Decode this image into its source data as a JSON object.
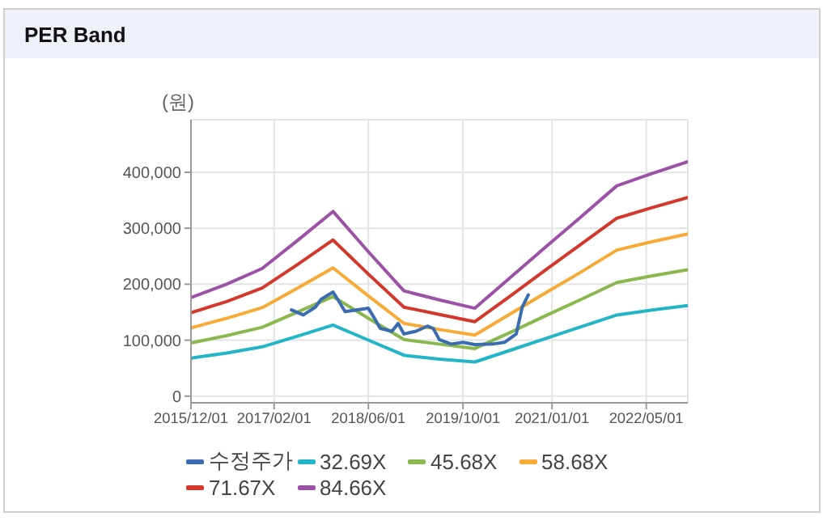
{
  "chart_data": {
    "type": "line",
    "title": "PER Band",
    "ylabel": "(원)",
    "x": [
      "2015-12-01",
      "2016-06-01",
      "2016-12-01",
      "2017-06-01",
      "2017-12-01",
      "2018-06-01",
      "2018-12-01",
      "2019-06-01",
      "2019-12-01",
      "2020-06-01",
      "2020-12-01",
      "2021-06-01",
      "2021-12-01",
      "2022-06-01",
      "2022-12-01"
    ],
    "series": [
      {
        "name": "수정주가",
        "color": "#3b6cb0",
        "x": [
          "2017-05",
          "2017-07",
          "2017-09",
          "2017-10",
          "2017-12",
          "2018-01",
          "2018-02",
          "2018-04",
          "2018-06",
          "2018-07",
          "2018-08",
          "2018-10",
          "2018-11",
          "2018-12",
          "2019-02",
          "2019-04",
          "2019-05",
          "2019-06",
          "2019-08",
          "2019-10",
          "2019-12",
          "2020-03",
          "2020-05",
          "2020-07",
          "2020-08",
          "2020-09"
        ],
        "values": [
          154000,
          145000,
          159000,
          173000,
          186000,
          169000,
          151000,
          154000,
          157000,
          140000,
          121000,
          116000,
          130000,
          111000,
          116000,
          125000,
          121000,
          101000,
          93000,
          96000,
          92000,
          93000,
          96000,
          111000,
          159000,
          181000
        ]
      },
      {
        "name": "32.69X",
        "color": "#22b5c8",
        "values": [
          68000,
          77000,
          88000,
          107000,
          127000,
          100000,
          73000,
          66000,
          61000,
          82000,
          103000,
          124000,
          145000,
          154000,
          162000
        ]
      },
      {
        "name": "45.68X",
        "color": "#8ab84e",
        "values": [
          95000,
          108000,
          123000,
          150000,
          178000,
          139000,
          101000,
          93000,
          85000,
          114000,
          144000,
          173000,
          203000,
          215000,
          226000
        ]
      },
      {
        "name": "58.68X",
        "color": "#f7aa35",
        "values": [
          122000,
          139000,
          158000,
          193000,
          229000,
          179000,
          130000,
          119000,
          109000,
          147000,
          185000,
          222000,
          261000,
          276000,
          290000
        ]
      },
      {
        "name": "71.67X",
        "color": "#d2392c",
        "values": [
          149000,
          169000,
          193000,
          235000,
          279000,
          218000,
          159000,
          146000,
          133000,
          179000,
          226000,
          272000,
          318000,
          337000,
          355000
        ]
      },
      {
        "name": "84.66X",
        "color": "#9b52a6",
        "values": [
          176000,
          200000,
          228000,
          278000,
          330000,
          258000,
          188000,
          172000,
          157000,
          212000,
          267000,
          321000,
          376000,
          398000,
          419000
        ]
      }
    ],
    "xlim": [
      "2015-12-01",
      "2022-12-01"
    ],
    "xticks": [
      {
        "value": "2015-12-01",
        "label": "2015/12/01"
      },
      {
        "value": "2017-02-01",
        "label": "2017/02/01"
      },
      {
        "value": "2018-06-01",
        "label": "2018/06/01"
      },
      {
        "value": "2019-10-01",
        "label": "2019/10/01"
      },
      {
        "value": "2021-01-01",
        "label": "2021/01/01"
      },
      {
        "value": "2022-05-01",
        "label": "2022/05/01"
      }
    ],
    "ylim": [
      -12000,
      494000
    ],
    "yticks": [
      0,
      {
        "value": 100000,
        "label": "100,000"
      },
      {
        "value": 200000,
        "label": "200,000"
      },
      {
        "value": 300000,
        "label": "300,000"
      },
      {
        "value": 400000,
        "label": "400,000"
      }
    ],
    "grid": true,
    "legend": "bottom",
    "marker": "none",
    "line_style": "solid"
  }
}
